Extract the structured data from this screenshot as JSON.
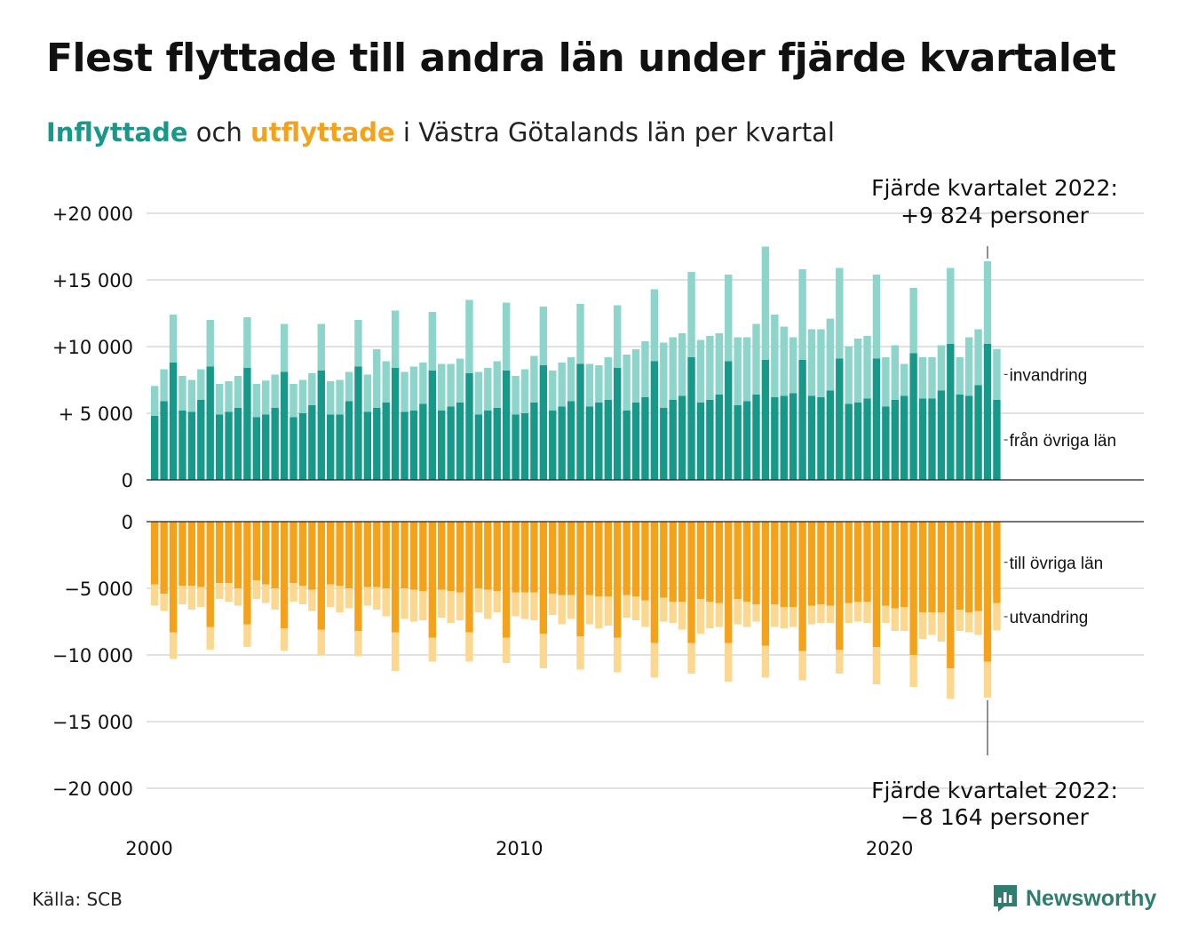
{
  "title": "Flest flyttade till andra län under fjärde kvartalet",
  "subtitle": {
    "in_word": "Inflyttade",
    "mid": " och ",
    "out_word": "utflyttade",
    "rest": " i Västra Götalands län per kvartal"
  },
  "source": "Källa: SCB",
  "brand": "Newsworthy",
  "colors": {
    "in_dark": "#17998a",
    "in_light": "#8dd5cb",
    "out_dark": "#f5a21b",
    "out_light": "#fcd78f",
    "grid": "#e2e2e2"
  },
  "chart_data": {
    "type": "bar",
    "stacked": true,
    "x_start": 2000,
    "x_ticks": [
      "2000",
      "2010",
      "2020"
    ],
    "top_y_ticks": [
      "0",
      "+ 5 000",
      "+10 000",
      "+15 000",
      "+20 000"
    ],
    "top_ylim": [
      0,
      20000
    ],
    "bottom_y_ticks": [
      "0",
      "−5 000",
      "−10 000",
      "−15 000",
      "−20 000"
    ],
    "bottom_ylim": [
      -20000,
      0
    ],
    "series_labels": {
      "invandring": "invandring",
      "fran_ovriga_lan": "från övriga län",
      "till_ovriga_lan": "till övriga län",
      "utvandring": "utvandring"
    },
    "annotation_top": [
      "Fjärde kvartalet 2022:",
      "+9 824 personer"
    ],
    "annotation_bottom": [
      "Fjärde kvartalet 2022:",
      "−8 164 personer"
    ],
    "in_total": [
      7050,
      8300,
      12400,
      7800,
      7500,
      8300,
      12000,
      7200,
      7400,
      7800,
      12200,
      7200,
      7450,
      7900,
      11700,
      7200,
      7500,
      8000,
      11700,
      7400,
      7500,
      8100,
      12000,
      7900,
      9800,
      8900,
      12700,
      8100,
      8500,
      8800,
      12600,
      8700,
      8700,
      9100,
      13500,
      8100,
      8400,
      8900,
      13300,
      7800,
      8300,
      9300,
      13000,
      8200,
      8800,
      9200,
      13200,
      8700,
      8600,
      9200,
      13100,
      9400,
      9800,
      10400,
      14300,
      10300,
      10700,
      11000,
      15600,
      10500,
      10800,
      11000,
      15400,
      10700,
      10700,
      11700,
      17500,
      12400,
      11500,
      10700,
      15800,
      11300,
      11300,
      12100,
      15900,
      10000,
      10600,
      10800,
      15400,
      9200,
      10100,
      8700,
      14400,
      9200,
      9200,
      10100,
      15900,
      9200,
      10700,
      11300,
      16400,
      9824
    ],
    "in_county": [
      4800,
      5900,
      8800,
      5200,
      5100,
      6000,
      8500,
      4900,
      5100,
      5400,
      8400,
      4700,
      4900,
      5400,
      8100,
      4700,
      5000,
      5600,
      8200,
      4900,
      4900,
      5900,
      8500,
      5100,
      5400,
      5800,
      8400,
      5100,
      5200,
      5700,
      8200,
      5200,
      5500,
      5800,
      8000,
      4900,
      5200,
      5400,
      8200,
      4900,
      5000,
      5800,
      8600,
      5200,
      5500,
      5900,
      8700,
      5500,
      5800,
      6000,
      8400,
      5200,
      5800,
      6200,
      8900,
      5400,
      6000,
      6300,
      9200,
      5800,
      6000,
      6400,
      8900,
      5600,
      5900,
      6400,
      9000,
      6200,
      6300,
      6500,
      9000,
      6300,
      6200,
      6700,
      9100,
      5700,
      5800,
      6100,
      9100,
      5500,
      6000,
      6300,
      9500,
      6100,
      6100,
      6700,
      10200,
      6400,
      6300,
      7100,
      10200,
      6000
    ],
    "out_county": [
      -4700,
      -5400,
      -8300,
      -4800,
      -4800,
      -4900,
      -7900,
      -4600,
      -4600,
      -5000,
      -7700,
      -4400,
      -4700,
      -5000,
      -8000,
      -4600,
      -4800,
      -5100,
      -8100,
      -4700,
      -4800,
      -5000,
      -8200,
      -4900,
      -4900,
      -5000,
      -8300,
      -5000,
      -5100,
      -5200,
      -8700,
      -5100,
      -5200,
      -5300,
      -8300,
      -5000,
      -5100,
      -5200,
      -8700,
      -5300,
      -5300,
      -5300,
      -8400,
      -5400,
      -5500,
      -5500,
      -8600,
      -5500,
      -5600,
      -5600,
      -8700,
      -5500,
      -5600,
      -5900,
      -9100,
      -5700,
      -6000,
      -6000,
      -9100,
      -5800,
      -6000,
      -6100,
      -9100,
      -5800,
      -6000,
      -6200,
      -9300,
      -6200,
      -6400,
      -6400,
      -9700,
      -6300,
      -6200,
      -6300,
      -9600,
      -6100,
      -6000,
      -6000,
      -9400,
      -6300,
      -6500,
      -6400,
      -10000,
      -6800,
      -6800,
      -6800,
      -11000,
      -6600,
      -6800,
      -6700,
      -10500,
      -6100
    ],
    "out_total": [
      -6300,
      -6700,
      -10300,
      -6200,
      -6600,
      -6400,
      -9600,
      -5800,
      -6000,
      -6300,
      -9400,
      -5800,
      -6100,
      -6600,
      -9700,
      -6000,
      -6200,
      -6700,
      -10000,
      -6400,
      -6800,
      -6500,
      -10100,
      -6300,
      -6600,
      -7100,
      -11200,
      -7300,
      -7500,
      -7400,
      -10500,
      -7200,
      -7600,
      -7400,
      -10500,
      -6800,
      -7300,
      -6800,
      -10600,
      -7100,
      -7300,
      -7400,
      -11000,
      -7000,
      -7700,
      -7300,
      -11100,
      -7700,
      -8000,
      -7800,
      -11300,
      -7200,
      -7400,
      -7900,
      -11700,
      -7500,
      -7600,
      -8100,
      -11400,
      -8400,
      -8000,
      -7900,
      -12000,
      -7700,
      -7900,
      -7500,
      -11700,
      -7900,
      -8000,
      -7900,
      -11900,
      -7700,
      -7600,
      -7600,
      -11400,
      -7600,
      -7500,
      -7600,
      -12200,
      -7600,
      -8200,
      -8200,
      -12400,
      -8800,
      -8500,
      -9000,
      -13300,
      -8200,
      -8300,
      -8500,
      -13200,
      -8164
    ]
  }
}
